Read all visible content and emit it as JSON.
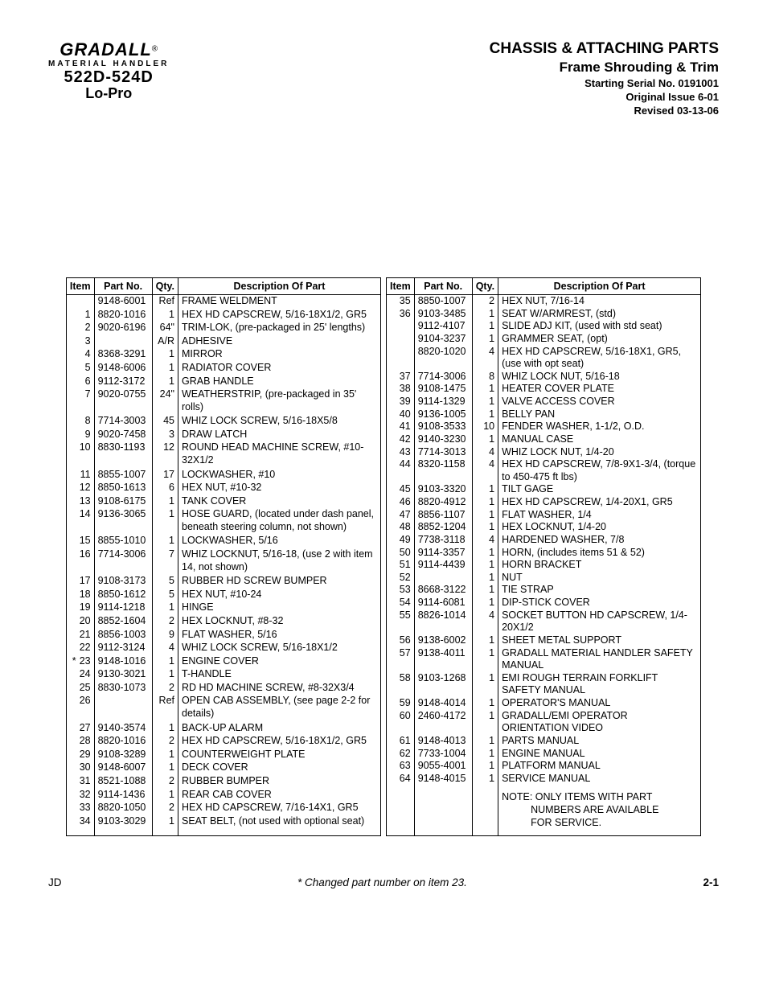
{
  "logo": {
    "main": "GRADALL",
    "reg": "®",
    "sub1": "MATERIAL HANDLER",
    "sub2": "522D-524D",
    "sub3": "Lo-Pro"
  },
  "titles": {
    "t1": "CHASSIS & ATTACHING PARTS",
    "t2": "Frame Shrouding & Trim",
    "m1": "Starting Serial No. 0191001",
    "m2": "Original Issue 6-01",
    "m3": "Revised  03-13-06"
  },
  "columns": [
    "Item",
    "Part No.",
    "Qty.",
    "Description Of Part"
  ],
  "left": [
    {
      "item": "",
      "part": "9148-6001",
      "qty": "Ref",
      "desc": "FRAME WELDMENT"
    },
    {
      "item": "1",
      "part": "8820-1016",
      "qty": "1",
      "desc": "HEX HD CAPSCREW, 5/16-18X1/2, GR5"
    },
    {
      "item": "2",
      "part": "9020-6196",
      "qty": "64\"",
      "desc": "TRIM-LOK, (pre-packaged in 25' lengths)"
    },
    {
      "item": "3",
      "part": "",
      "qty": "A/R",
      "desc": "ADHESIVE"
    },
    {
      "item": "4",
      "part": "8368-3291",
      "qty": "1",
      "desc": "MIRROR"
    },
    {
      "item": "5",
      "part": "9148-6006",
      "qty": "1",
      "desc": "RADIATOR COVER"
    },
    {
      "item": "6",
      "part": "9112-3172",
      "qty": "1",
      "desc": "GRAB HANDLE"
    },
    {
      "item": "7",
      "part": "9020-0755",
      "qty": "24\"",
      "desc": "WEATHERSTRIP, (pre-packaged in 35' rolls)"
    },
    {
      "item": "8",
      "part": "7714-3003",
      "qty": "45",
      "desc": "WHIZ LOCK SCREW, 5/16-18X5/8"
    },
    {
      "item": "9",
      "part": "9020-7458",
      "qty": "3",
      "desc": "DRAW LATCH"
    },
    {
      "item": "10",
      "part": "8830-1193",
      "qty": "12",
      "desc": "ROUND HEAD MACHINE SCREW, #10-32X1/2"
    },
    {
      "item": "11",
      "part": "8855-1007",
      "qty": "17",
      "desc": "LOCKWASHER, #10"
    },
    {
      "item": "12",
      "part": "8850-1613",
      "qty": "6",
      "desc": "HEX NUT, #10-32"
    },
    {
      "item": "13",
      "part": "9108-6175",
      "qty": "1",
      "desc": "TANK COVER"
    },
    {
      "item": "14",
      "part": "9136-3065",
      "qty": "1",
      "desc": "HOSE GUARD, (located under dash panel, beneath steering column, not shown)"
    },
    {
      "item": "15",
      "part": "8855-1010",
      "qty": "1",
      "desc": "LOCKWASHER, 5/16"
    },
    {
      "item": "16",
      "part": "7714-3006",
      "qty": "7",
      "desc": "WHIZ LOCKNUT, 5/16-18, (use 2 with item 14, not shown)"
    },
    {
      "item": "17",
      "part": "9108-3173",
      "qty": "5",
      "desc": "RUBBER HD SCREW BUMPER"
    },
    {
      "item": "18",
      "part": "8850-1612",
      "qty": "5",
      "desc": "HEX NUT, #10-24"
    },
    {
      "item": "19",
      "part": "9114-1218",
      "qty": "1",
      "desc": "HINGE"
    },
    {
      "item": "20",
      "part": "8852-1604",
      "qty": "2",
      "desc": "HEX LOCKNUT, #8-32"
    },
    {
      "item": "21",
      "part": "8856-1003",
      "qty": "9",
      "desc": "FLAT WASHER, 5/16"
    },
    {
      "item": "22",
      "part": "9112-3124",
      "qty": "4",
      "desc": "WHIZ LOCK SCREW, 5/16-18X1/2"
    },
    {
      "item": "23",
      "star": true,
      "part": "9148-1016",
      "qty": "1",
      "desc": "ENGINE COVER"
    },
    {
      "item": "24",
      "part": "9130-3021",
      "qty": "1",
      "desc": "T-HANDLE"
    },
    {
      "item": "25",
      "part": "8830-1073",
      "qty": "2",
      "desc": "RD HD MACHINE SCREW, #8-32X3/4"
    },
    {
      "item": "26",
      "part": "",
      "qty": "Ref",
      "desc": "OPEN CAB ASSEMBLY, (see page 2-2 for details)"
    },
    {
      "item": "27",
      "part": "9140-3574",
      "qty": "1",
      "desc": "BACK-UP ALARM"
    },
    {
      "item": "28",
      "part": "8820-1016",
      "qty": "2",
      "desc": "HEX HD CAPSCREW, 5/16-18X1/2, GR5"
    },
    {
      "item": "29",
      "part": "9108-3289",
      "qty": "1",
      "desc": "COUNTERWEIGHT PLATE"
    },
    {
      "item": "30",
      "part": "9148-6007",
      "qty": "1",
      "desc": "DECK COVER"
    },
    {
      "item": "31",
      "part": "8521-1088",
      "qty": "2",
      "desc": "RUBBER BUMPER"
    },
    {
      "item": "32",
      "part": "9114-1436",
      "qty": "1",
      "desc": "REAR CAB COVER"
    },
    {
      "item": "33",
      "part": "8820-1050",
      "qty": "2",
      "desc": "HEX HD CAPSCREW, 7/16-14X1, GR5"
    },
    {
      "item": "34",
      "part": "9103-3029",
      "qty": "1",
      "desc": "SEAT BELT, (not used with optional seat)"
    }
  ],
  "right": [
    {
      "item": "35",
      "part": "8850-1007",
      "qty": "2",
      "desc": "HEX NUT, 7/16-14"
    },
    {
      "item": "36",
      "part": "9103-3485",
      "qty": "1",
      "desc": "SEAT W/ARMREST, (std)"
    },
    {
      "item": "",
      "part": "9112-4107",
      "qty": "1",
      "desc": "SLIDE ADJ KIT, (used with std seat)"
    },
    {
      "item": "",
      "part": "9104-3237",
      "qty": "1",
      "desc": "GRAMMER SEAT, (opt)"
    },
    {
      "item": "",
      "part": "8820-1020",
      "qty": "4",
      "desc": "HEX HD CAPSCREW, 5/16-18X1, GR5, (use with opt seat)"
    },
    {
      "item": "37",
      "part": "7714-3006",
      "qty": "8",
      "desc": "WHIZ LOCK NUT, 5/16-18"
    },
    {
      "item": "38",
      "part": "9108-1475",
      "qty": "1",
      "desc": "HEATER COVER PLATE"
    },
    {
      "item": "39",
      "part": "9114-1329",
      "qty": "1",
      "desc": "VALVE ACCESS COVER"
    },
    {
      "item": "40",
      "part": "9136-1005",
      "qty": "1",
      "desc": "BELLY PAN"
    },
    {
      "item": "41",
      "part": "9108-3533",
      "qty": "10",
      "desc": "FENDER WASHER, 1-1/2, O.D."
    },
    {
      "item": "42",
      "part": "9140-3230",
      "qty": "1",
      "desc": "MANUAL CASE"
    },
    {
      "item": "43",
      "part": "7714-3013",
      "qty": "4",
      "desc": "WHIZ LOCK NUT, 1/4-20"
    },
    {
      "item": "44",
      "part": "8320-1158",
      "qty": "4",
      "desc": "HEX HD CAPSCREW, 7/8-9X1-3/4, (torque to 450-475 ft lbs)"
    },
    {
      "item": "45",
      "part": "9103-3320",
      "qty": "1",
      "desc": "TILT GAGE"
    },
    {
      "item": "46",
      "part": "8820-4912",
      "qty": "1",
      "desc": "HEX HD CAPSCREW, 1/4-20X1, GR5"
    },
    {
      "item": "47",
      "part": "8856-1107",
      "qty": "1",
      "desc": "FLAT WASHER, 1/4"
    },
    {
      "item": "48",
      "part": "8852-1204",
      "qty": "1",
      "desc": "HEX LOCKNUT, 1/4-20"
    },
    {
      "item": "49",
      "part": "7738-3118",
      "qty": "4",
      "desc": "HARDENED WASHER, 7/8"
    },
    {
      "item": "50",
      "part": "9114-3357",
      "qty": "1",
      "desc": "HORN, (includes items 51 & 52)"
    },
    {
      "item": "51",
      "part": "9114-4439",
      "qty": "1",
      "desc": "HORN BRACKET"
    },
    {
      "item": "52",
      "part": "",
      "qty": "1",
      "desc": "NUT"
    },
    {
      "item": "53",
      "part": "8668-3122",
      "qty": "1",
      "desc": "TIE STRAP"
    },
    {
      "item": "54",
      "part": "9114-6081",
      "qty": "1",
      "desc": "DIP-STICK COVER"
    },
    {
      "item": "55",
      "part": "8826-1014",
      "qty": "4",
      "desc": "SOCKET BUTTON HD CAPSCREW, 1/4-20X1/2"
    },
    {
      "item": "56",
      "part": "9138-6002",
      "qty": "1",
      "desc": "SHEET METAL SUPPORT"
    },
    {
      "item": "57",
      "part": "9138-4011",
      "qty": "1",
      "desc": "GRADALL MATERIAL HANDLER SAFETY MANUAL"
    },
    {
      "item": "58",
      "part": "9103-1268",
      "qty": "1",
      "desc": "EMI ROUGH TERRAIN FORKLIFT SAFETY MANUAL"
    },
    {
      "item": "59",
      "part": "9148-4014",
      "qty": "1",
      "desc": "OPERATOR'S MANUAL"
    },
    {
      "item": "60",
      "part": "2460-4172",
      "qty": "1",
      "desc": "GRADALL/EMI OPERATOR ORIENTATION VIDEO"
    },
    {
      "item": "61",
      "part": "9148-4013",
      "qty": "1",
      "desc": "PARTS MANUAL"
    },
    {
      "item": "62",
      "part": "7733-1004",
      "qty": "1",
      "desc": "ENGINE MANUAL"
    },
    {
      "item": "63",
      "part": "9055-4001",
      "qty": "1",
      "desc": "PLATFORM MANUAL"
    },
    {
      "item": "64",
      "part": "9148-4015",
      "qty": "1",
      "desc": "SERVICE MANUAL"
    }
  ],
  "note": {
    "l1": "NOTE: ONLY ITEMS WITH PART",
    "l2": "NUMBERS ARE AVAILABLE",
    "l3": "FOR SERVICE."
  },
  "footer": {
    "left": "JD",
    "mid": "* Changed part number on item 23.",
    "right": "2-1"
  }
}
